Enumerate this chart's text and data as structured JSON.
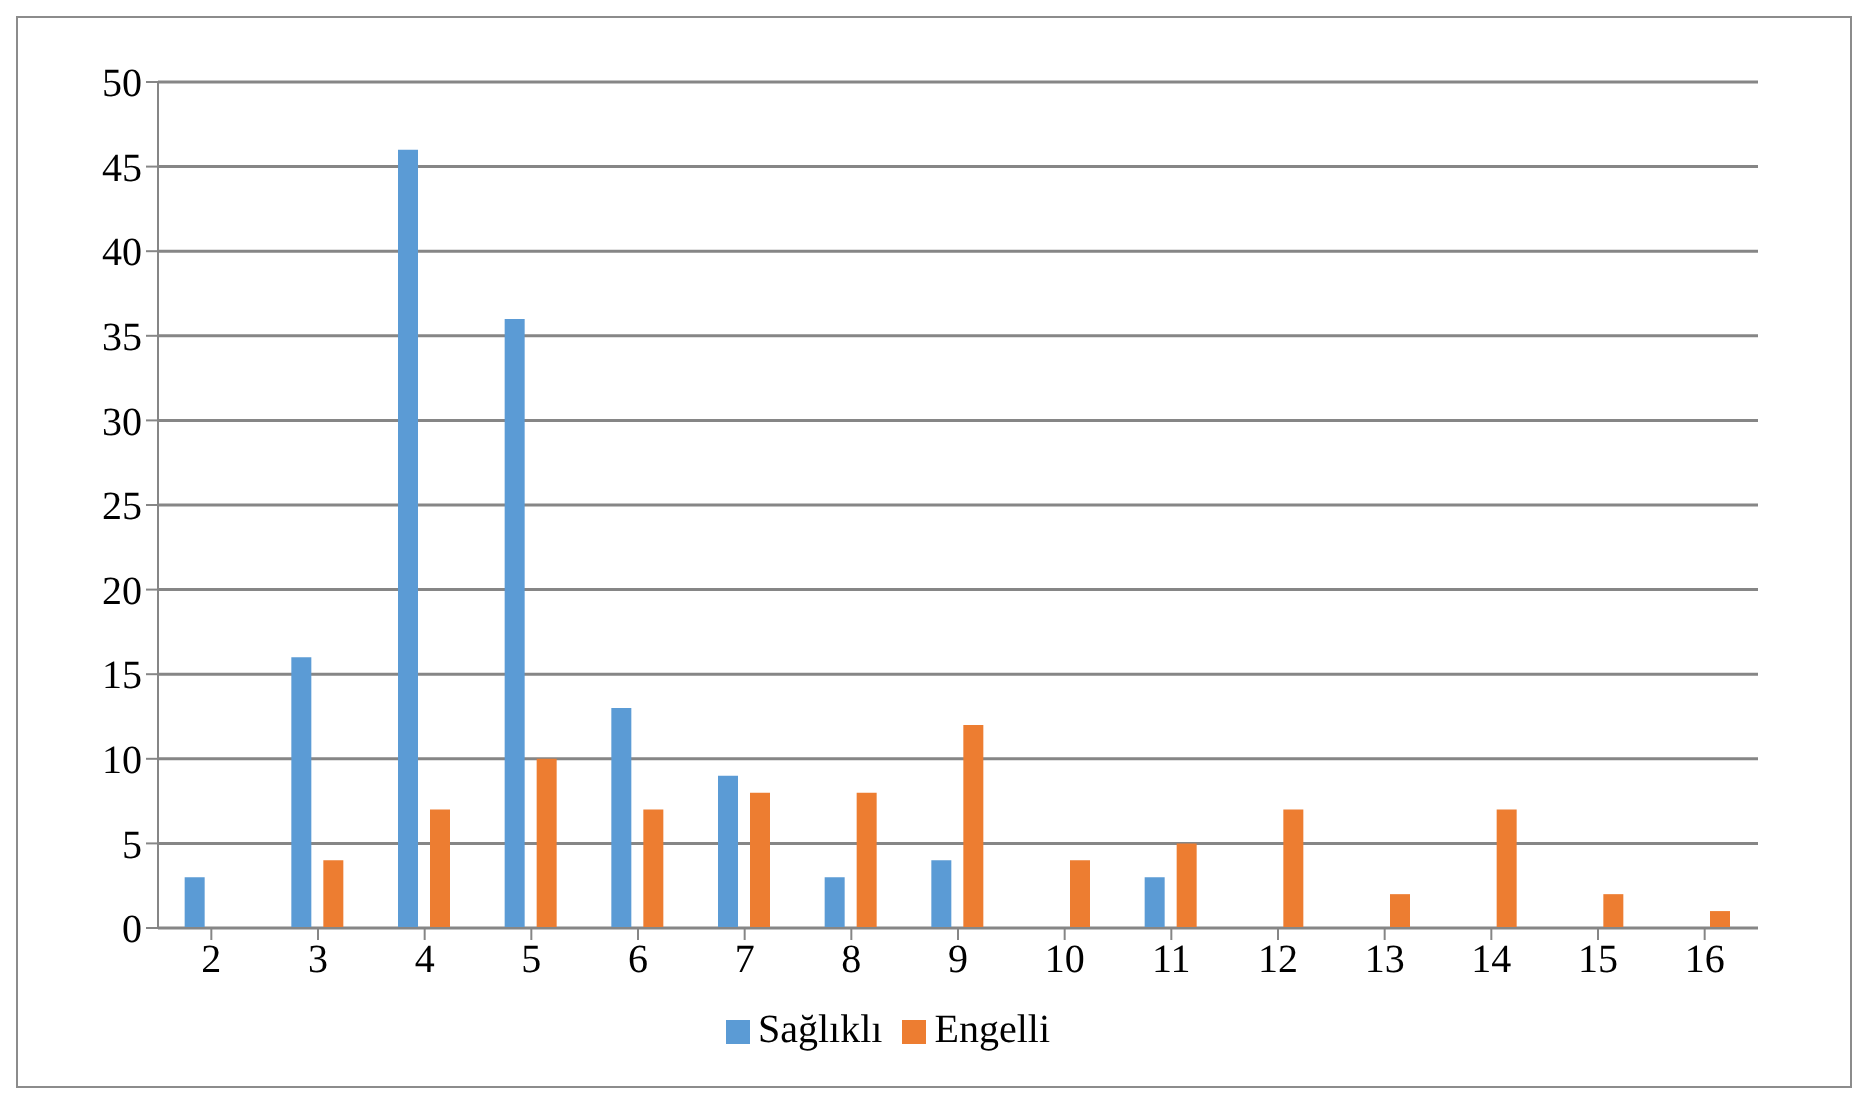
{
  "chart_data": {
    "type": "bar",
    "categories": [
      "2",
      "3",
      "4",
      "5",
      "6",
      "7",
      "8",
      "9",
      "10",
      "11",
      "12",
      "13",
      "14",
      "15",
      "16"
    ],
    "series": [
      {
        "name": "Sağlıklı",
        "color": "#5b9bd5",
        "values": [
          3,
          16,
          46,
          36,
          13,
          9,
          3,
          4,
          0,
          3,
          0,
          0,
          0,
          0,
          0
        ]
      },
      {
        "name": "Engelli",
        "color": "#ed7d31",
        "values": [
          0,
          4,
          7,
          10,
          7,
          8,
          8,
          12,
          4,
          5,
          7,
          2,
          7,
          2,
          1
        ]
      }
    ],
    "ylim": [
      0,
      50
    ],
    "yticks": [
      0,
      5,
      10,
      15,
      20,
      25,
      30,
      35,
      40,
      45,
      50
    ],
    "grid": "y",
    "legend": "bottom"
  }
}
